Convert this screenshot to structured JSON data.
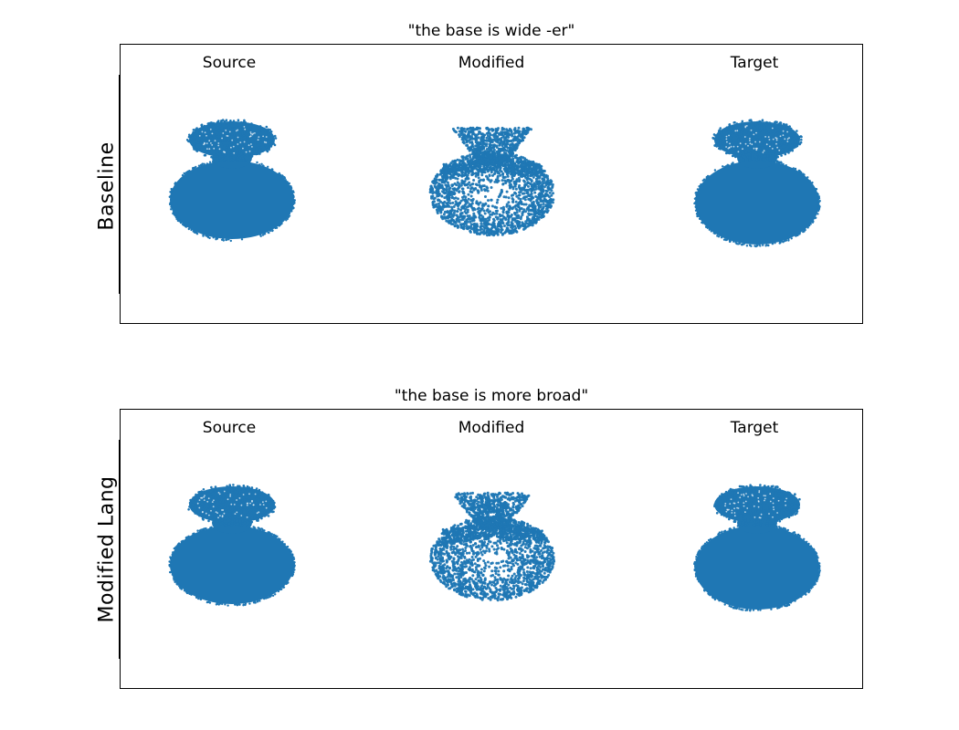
{
  "panels": [
    {
      "title": "\"the base is wide -er\"",
      "row_label": "Baseline",
      "columns": [
        "Source",
        "Modified",
        "Target"
      ]
    },
    {
      "title": "\"the base is more broad\"",
      "row_label": "Modified Lang",
      "columns": [
        "Source",
        "Modified",
        "Target"
      ]
    }
  ],
  "colors": {
    "points": "#1f77b4",
    "frame": "#000000"
  }
}
